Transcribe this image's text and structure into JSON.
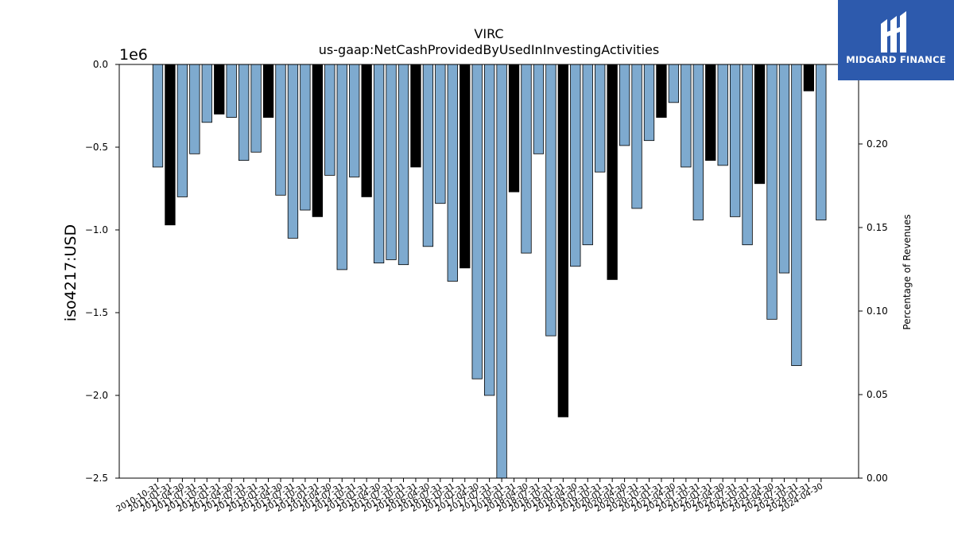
{
  "logo": {
    "text": "MIDGARD FINANCE"
  },
  "chart_data": {
    "type": "bar",
    "title": "VIRC",
    "subtitle": "us-gaap:NetCashProvidedByUsedInInvestingActivities",
    "ylabel": "iso4217:USD",
    "y2label": "Percentage of Revenues",
    "y_offset_label": "1e6",
    "ylim": [
      -2.5,
      0.0
    ],
    "yticks": [
      0.0,
      -0.5,
      -1.0,
      -1.5,
      -2.0,
      -2.5
    ],
    "ytick_labels": [
      "0.0",
      "−0.5",
      "−1.0",
      "−1.5",
      "−2.0",
      "−2.5"
    ],
    "y2lim": [
      0.0,
      0.2476
    ],
    "y2ticks": [
      0.0,
      0.05,
      0.1,
      0.15,
      0.2
    ],
    "y2tick_labels": [
      "0.00",
      "0.05",
      "0.10",
      "0.15",
      "0.20"
    ],
    "colors": {
      "quarter": "#7eaacf",
      "annual": "#000000"
    },
    "categories": [
      "2010-10-31",
      "2011-01-31",
      "2011-04-30",
      "2011-07-31",
      "2011-10-31",
      "2012-01-31",
      "2012-04-30",
      "2012-07-31",
      "2012-10-31",
      "2013-01-31",
      "2013-04-30",
      "2013-07-31",
      "2013-10-31",
      "2014-01-31",
      "2014-04-30",
      "2014-07-31",
      "2014-10-31",
      "2015-01-31",
      "2015-04-30",
      "2015-07-31",
      "2015-10-31",
      "2016-01-31",
      "2016-04-30",
      "2016-07-31",
      "2016-10-31",
      "2017-01-31",
      "2017-04-30",
      "2017-07-31",
      "2017-10-31",
      "2018-01-31",
      "2018-04-30",
      "2018-07-31",
      "2018-10-31",
      "2019-01-31",
      "2019-04-30",
      "2019-07-31",
      "2019-10-31",
      "2020-01-31",
      "2020-04-30",
      "2020-07-31",
      "2020-10-31",
      "2021-01-31",
      "2021-04-30",
      "2021-07-31",
      "2021-10-31",
      "2022-01-31",
      "2022-04-30",
      "2022-07-31",
      "2022-10-31",
      "2023-01-31",
      "2023-04-30",
      "2023-07-31",
      "2023-10-31",
      "2024-01-31",
      "2024-04-30"
    ],
    "values": [
      -0.62,
      -0.97,
      -0.8,
      -0.54,
      -0.35,
      -0.3,
      -0.32,
      -0.58,
      -0.53,
      -0.32,
      -0.79,
      -1.05,
      -0.88,
      -0.92,
      -0.67,
      -1.24,
      -0.68,
      -0.8,
      -1.2,
      -1.18,
      -1.21,
      -0.62,
      -1.1,
      -0.84,
      -1.31,
      -1.23,
      -1.9,
      -2.0,
      -2.52,
      -0.77,
      -1.14,
      -0.54,
      -1.64,
      -2.13,
      -1.22,
      -1.09,
      -0.65,
      -1.3,
      -0.49,
      -0.87,
      -0.46,
      -0.32,
      -0.23,
      -0.62,
      -0.94,
      -0.58,
      -0.61,
      -0.92,
      -1.09,
      -0.72,
      -1.54,
      -1.26,
      -1.82,
      -0.16,
      -0.94
    ],
    "annual": [
      false,
      true,
      false,
      false,
      false,
      true,
      false,
      false,
      false,
      true,
      false,
      false,
      false,
      true,
      false,
      false,
      false,
      true,
      false,
      false,
      false,
      true,
      false,
      false,
      false,
      true,
      false,
      false,
      false,
      true,
      false,
      false,
      false,
      true,
      false,
      false,
      false,
      true,
      false,
      false,
      false,
      true,
      false,
      false,
      false,
      true,
      false,
      false,
      false,
      true,
      false,
      false,
      false,
      true,
      false
    ]
  }
}
